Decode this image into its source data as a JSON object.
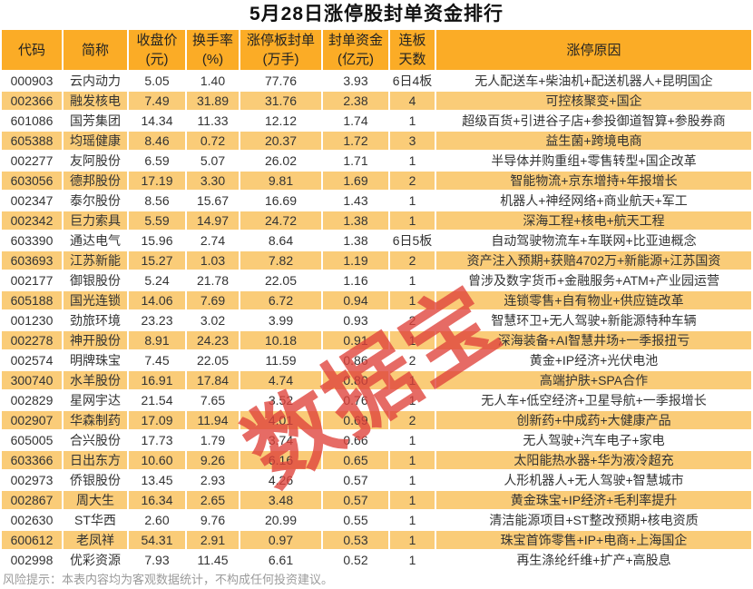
{
  "watermark": {
    "text": "数据宝",
    "color": "#E0423B"
  },
  "footer": {
    "note": "风险提示：本表内容均为客观数据统计，不构成任何投资建议。"
  },
  "colors": {
    "header_bg": "#FBAC26",
    "stripe_bg": "#FACC78",
    "title_text": "#111111",
    "body_text": "#333333",
    "footer_text": "#9B9B9B",
    "watermark_red": "#E0423B",
    "grid_line": "#FFFFFF"
  },
  "chart_data": {
    "type": "table",
    "title": "5月28日涨停股封单资金排行",
    "columns": [
      {
        "key": "code",
        "label": "代码"
      },
      {
        "key": "name",
        "label": "简称"
      },
      {
        "key": "close",
        "label": "收盘价\n(元)"
      },
      {
        "key": "turnover",
        "label": "换手率\n(%)"
      },
      {
        "key": "seal_lots",
        "label": "涨停板封单\n(万手)"
      },
      {
        "key": "seal_amount",
        "label": "封单资金\n(亿元)"
      },
      {
        "key": "streak",
        "label": "连板\n天数"
      },
      {
        "key": "reason",
        "label": "涨停原因"
      }
    ],
    "rows": [
      [
        "000903",
        "云内动力",
        "5.05",
        "1.40",
        "77.76",
        "3.93",
        "6日4板",
        "无人配送车+柴油机+配送机器人+昆明国企"
      ],
      [
        "002366",
        "融发核电",
        "7.49",
        "31.89",
        "31.76",
        "2.38",
        "4",
        "可控核聚变+国企"
      ],
      [
        "601086",
        "国芳集团",
        "14.34",
        "11.33",
        "12.12",
        "1.74",
        "1",
        "超级百货+引进谷子店+参投御道智算+参股券商"
      ],
      [
        "605388",
        "均瑶健康",
        "8.46",
        "0.72",
        "20.37",
        "1.72",
        "3",
        "益生菌+跨境电商"
      ],
      [
        "002277",
        "友阿股份",
        "6.59",
        "5.07",
        "26.02",
        "1.71",
        "1",
        "半导体并购重组+零售转型+国企改革"
      ],
      [
        "603056",
        "德邦股份",
        "17.19",
        "3.30",
        "9.81",
        "1.69",
        "2",
        "智能物流+京东增持+年报增长"
      ],
      [
        "002347",
        "泰尔股份",
        "8.56",
        "15.67",
        "16.69",
        "1.43",
        "1",
        "机器人+神经网络+商业航天+军工"
      ],
      [
        "002342",
        "巨力索具",
        "5.59",
        "14.97",
        "24.72",
        "1.38",
        "1",
        "深海工程+核电+航天工程"
      ],
      [
        "603390",
        "通达电气",
        "15.96",
        "2.74",
        "8.64",
        "1.38",
        "6日5板",
        "自动驾驶物流车+车联网+比亚迪概念"
      ],
      [
        "603693",
        "江苏新能",
        "15.27",
        "1.03",
        "7.82",
        "1.19",
        "2",
        "资产注入预期+获赔4702万+新能源+江苏国资"
      ],
      [
        "002177",
        "御银股份",
        "5.24",
        "21.78",
        "22.05",
        "1.16",
        "1",
        "曾涉及数字货币+金融服务+ATM+产业园运营"
      ],
      [
        "605188",
        "国光连锁",
        "14.06",
        "7.69",
        "6.72",
        "0.94",
        "1",
        "连锁零售+自有物业+供应链改革"
      ],
      [
        "001230",
        "劲旅环境",
        "23.23",
        "3.02",
        "3.99",
        "0.93",
        "2",
        "智慧环卫+无人驾驶+新能源特种车辆"
      ],
      [
        "002278",
        "神开股份",
        "8.91",
        "24.23",
        "10.18",
        "0.91",
        "1",
        "深海装备+AI智慧井场+一季报扭亏"
      ],
      [
        "002574",
        "明牌珠宝",
        "7.45",
        "22.05",
        "11.59",
        "0.86",
        "2",
        "黄金+IP经济+光伏电池"
      ],
      [
        "300740",
        "水羊股份",
        "16.91",
        "17.84",
        "4.74",
        "0.80",
        "1",
        "高端护肤+SPA合作"
      ],
      [
        "002829",
        "星网宇达",
        "21.54",
        "7.65",
        "3.52",
        "0.76",
        "1",
        "无人车+低空经济+卫星导航+一季报增长"
      ],
      [
        "002907",
        "华森制药",
        "17.09",
        "11.94",
        "4.01",
        "0.69",
        "2",
        "创新药+中成药+大健康产品"
      ],
      [
        "605005",
        "合兴股份",
        "17.73",
        "1.79",
        "3.74",
        "0.66",
        "1",
        "无人驾驶+汽车电子+家电"
      ],
      [
        "603366",
        "日出东方",
        "10.60",
        "9.26",
        "6.16",
        "0.65",
        "1",
        "太阳能热水器+华为液冷超充"
      ],
      [
        "002973",
        "侨银股份",
        "13.45",
        "2.93",
        "4.26",
        "0.57",
        "1",
        "人形机器人+无人驾驶+智慧城市"
      ],
      [
        "002867",
        "周大生",
        "16.34",
        "2.65",
        "3.48",
        "0.57",
        "1",
        "黄金珠宝+IP经济+毛利率提升"
      ],
      [
        "002630",
        "ST华西",
        "2.60",
        "9.76",
        "20.99",
        "0.55",
        "1",
        "清洁能源项目+ST整改预期+核电资质"
      ],
      [
        "600612",
        "老凤祥",
        "54.31",
        "2.91",
        "0.97",
        "0.53",
        "1",
        "珠宝首饰零售+IP+电商+上海国企"
      ],
      [
        "002998",
        "优彩资源",
        "7.93",
        "11.45",
        "6.61",
        "0.52",
        "1",
        "再生涤纶纤维+扩产+高股息"
      ]
    ]
  }
}
